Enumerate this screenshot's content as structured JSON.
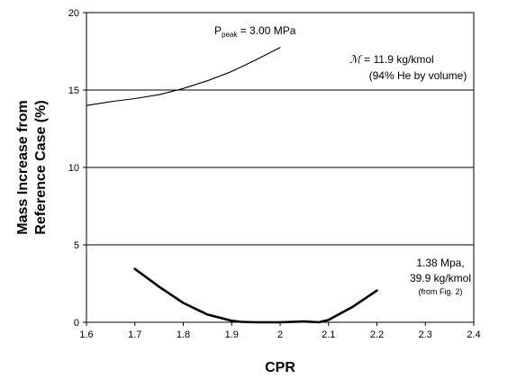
{
  "chart_data": {
    "type": "line",
    "xlabel": "CPR",
    "ylabel_line1": "Mass Increase from",
    "ylabel_line2": "Reference Case (%)",
    "xlim": [
      1.6,
      2.4
    ],
    "ylim": [
      0,
      20
    ],
    "x_ticks": [
      1.6,
      1.7,
      1.8,
      1.9,
      2.0,
      2.1,
      2.2,
      2.3,
      2.4
    ],
    "x_tick_labels": [
      "1.6",
      "1.7",
      "1.8",
      "1.9",
      "2",
      "2.1",
      "2.2",
      "2.3",
      "2.4"
    ],
    "y_ticks": [
      0,
      5,
      10,
      15,
      20
    ],
    "y_tick_labels": [
      "0",
      "5",
      "10",
      "15",
      "20"
    ],
    "gridlines_y": [
      5,
      10,
      15
    ],
    "series": [
      {
        "line_weight": "thin",
        "x": [
          1.6,
          1.65,
          1.7,
          1.75,
          1.8,
          1.85,
          1.9,
          1.95,
          2.0
        ],
        "y": [
          14.0,
          14.25,
          14.45,
          14.7,
          15.1,
          15.6,
          16.2,
          16.95,
          17.75
        ]
      },
      {
        "line_weight": "thick",
        "x": [
          1.7,
          1.75,
          1.8,
          1.85,
          1.9,
          1.92,
          1.95,
          2.0,
          2.05,
          2.08,
          2.1,
          2.15,
          2.2
        ],
        "y": [
          3.45,
          2.3,
          1.25,
          0.5,
          0.1,
          0.03,
          0.0,
          0.0,
          0.05,
          0.0,
          0.15,
          1.0,
          2.05
        ]
      }
    ],
    "annotations": {
      "peak_prefix": "P",
      "peak_sub": "peak",
      "peak_value": " = 3.00 MPa",
      "molar_symbol": "ℳ",
      "molar_value": " = 11.9 kg/kmol",
      "composition": "(94% He by volume)",
      "low_line1": "1.38 Mpa,",
      "low_line2": "39.9 kg/kmol",
      "low_line3": "(from Fig. 2)"
    }
  }
}
